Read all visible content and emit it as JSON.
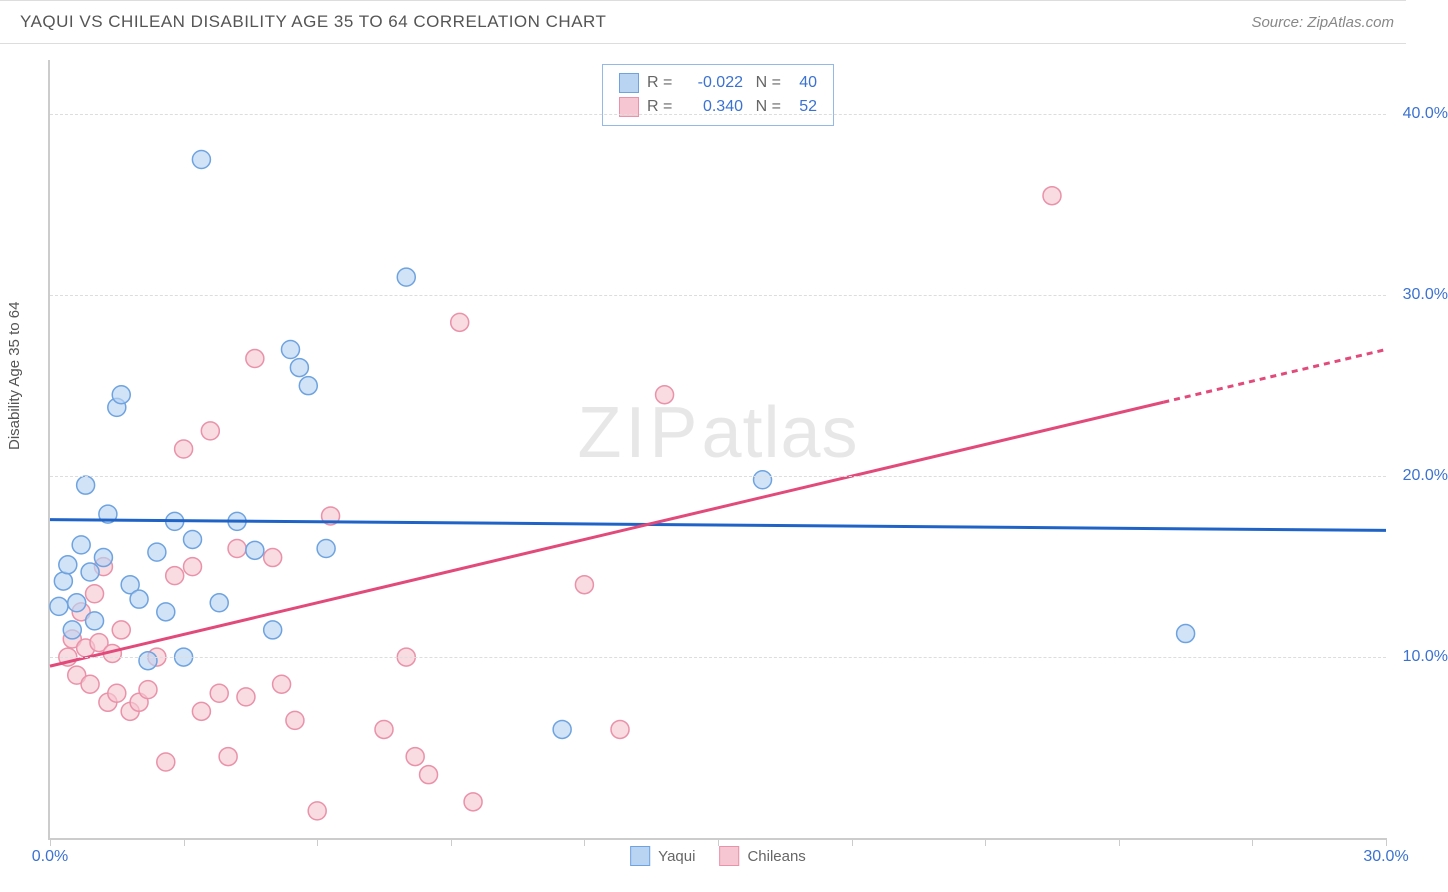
{
  "header": {
    "title": "YAQUI VS CHILEAN DISABILITY AGE 35 TO 64 CORRELATION CHART",
    "source": "Source: ZipAtlas.com"
  },
  "axes": {
    "y_label": "Disability Age 35 to 64",
    "x_min": 0.0,
    "x_max": 30.0,
    "y_min": 0.0,
    "y_max": 43.0,
    "x_ticks": [
      0.0,
      3.0,
      6.0,
      9.0,
      12.0,
      15.0,
      18.0,
      21.0,
      24.0,
      27.0,
      30.0
    ],
    "x_tick_labels": {
      "0": "0.0%",
      "30": "30.0%"
    },
    "y_ticks": [
      10.0,
      20.0,
      30.0,
      40.0
    ],
    "y_tick_labels": {
      "10": "10.0%",
      "20": "20.0%",
      "30": "30.0%",
      "40": "40.0%"
    },
    "grid_color": "#dddddd",
    "axis_color": "#cccccc"
  },
  "series": {
    "yaqui": {
      "label": "Yaqui",
      "fill": "#b9d4f2",
      "stroke": "#6fa3df",
      "line_color": "#1f63c7",
      "marker_r": 9,
      "R": "-0.022",
      "N": "40",
      "regression": {
        "x0": 0.0,
        "y0": 17.6,
        "x1": 30.0,
        "y1": 17.0,
        "dash_from_x": 30.0
      },
      "points": [
        [
          0.2,
          12.8
        ],
        [
          0.3,
          14.2
        ],
        [
          0.4,
          15.1
        ],
        [
          0.5,
          11.5
        ],
        [
          0.6,
          13.0
        ],
        [
          0.7,
          16.2
        ],
        [
          0.8,
          19.5
        ],
        [
          0.9,
          14.7
        ],
        [
          1.0,
          12.0
        ],
        [
          1.2,
          15.5
        ],
        [
          1.3,
          17.9
        ],
        [
          1.5,
          23.8
        ],
        [
          1.6,
          24.5
        ],
        [
          1.8,
          14.0
        ],
        [
          2.0,
          13.2
        ],
        [
          2.2,
          9.8
        ],
        [
          2.4,
          15.8
        ],
        [
          2.6,
          12.5
        ],
        [
          2.8,
          17.5
        ],
        [
          3.0,
          10.0
        ],
        [
          3.2,
          16.5
        ],
        [
          3.4,
          37.5
        ],
        [
          3.8,
          13.0
        ],
        [
          4.2,
          17.5
        ],
        [
          4.6,
          15.9
        ],
        [
          5.0,
          11.5
        ],
        [
          5.4,
          27.0
        ],
        [
          5.6,
          26.0
        ],
        [
          5.8,
          25.0
        ],
        [
          6.2,
          16.0
        ],
        [
          8.0,
          31.0
        ],
        [
          11.5,
          6.0
        ],
        [
          16.0,
          19.8
        ],
        [
          25.5,
          11.3
        ]
      ]
    },
    "chileans": {
      "label": "Chileans",
      "fill": "#f6c7d2",
      "stroke": "#e992a9",
      "line_color": "#e14a7b",
      "marker_r": 9,
      "R": "0.340",
      "N": "52",
      "regression": {
        "x0": 0.0,
        "y0": 9.5,
        "x1": 30.0,
        "y1": 27.0,
        "dash_from_x": 25.0
      },
      "points": [
        [
          0.4,
          10.0
        ],
        [
          0.5,
          11.0
        ],
        [
          0.6,
          9.0
        ],
        [
          0.7,
          12.5
        ],
        [
          0.8,
          10.5
        ],
        [
          0.9,
          8.5
        ],
        [
          1.0,
          13.5
        ],
        [
          1.1,
          10.8
        ],
        [
          1.2,
          15.0
        ],
        [
          1.3,
          7.5
        ],
        [
          1.4,
          10.2
        ],
        [
          1.5,
          8.0
        ],
        [
          1.6,
          11.5
        ],
        [
          1.8,
          7.0
        ],
        [
          2.0,
          7.5
        ],
        [
          2.2,
          8.2
        ],
        [
          2.4,
          10.0
        ],
        [
          2.6,
          4.2
        ],
        [
          2.8,
          14.5
        ],
        [
          3.0,
          21.5
        ],
        [
          3.2,
          15.0
        ],
        [
          3.4,
          7.0
        ],
        [
          3.6,
          22.5
        ],
        [
          3.8,
          8.0
        ],
        [
          4.0,
          4.5
        ],
        [
          4.2,
          16.0
        ],
        [
          4.4,
          7.8
        ],
        [
          4.6,
          26.5
        ],
        [
          5.0,
          15.5
        ],
        [
          5.2,
          8.5
        ],
        [
          5.5,
          6.5
        ],
        [
          6.0,
          1.5
        ],
        [
          6.3,
          17.8
        ],
        [
          7.5,
          6.0
        ],
        [
          8.0,
          10.0
        ],
        [
          8.2,
          4.5
        ],
        [
          8.5,
          3.5
        ],
        [
          9.2,
          28.5
        ],
        [
          9.5,
          2.0
        ],
        [
          12.0,
          14.0
        ],
        [
          12.8,
          6.0
        ],
        [
          13.8,
          24.5
        ],
        [
          22.5,
          35.5
        ]
      ]
    }
  },
  "watermark": {
    "zip": "ZIP",
    "atlas": "atlas"
  },
  "legend_top": {
    "R_label": "R =",
    "N_label": "N ="
  },
  "styling": {
    "background": "#ffffff",
    "title_color": "#555555",
    "title_fontsize": 17,
    "tick_label_color": "#3b72d1",
    "tick_fontsize": 16,
    "line_width": 3
  }
}
